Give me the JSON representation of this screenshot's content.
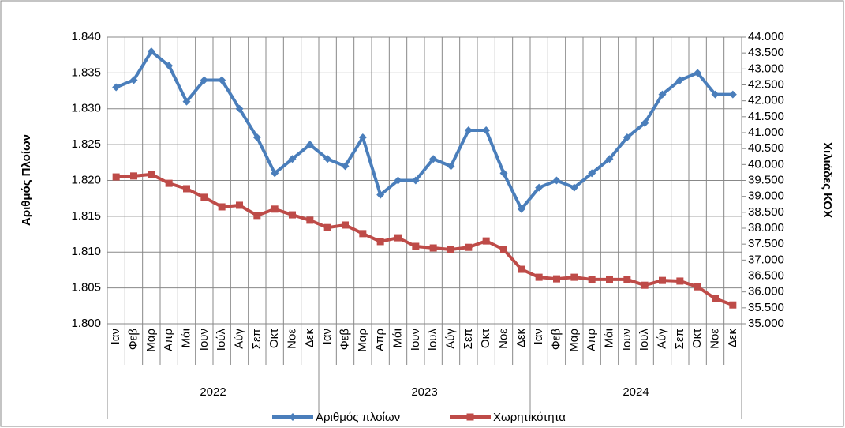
{
  "chart_data": {
    "type": "line",
    "categories": [
      "Ιαν",
      "Φεβ",
      "Μαρ",
      "Απρ",
      "Μάι",
      "Ιουν",
      "Ιούλ",
      "Αύγ",
      "Σεπ",
      "Οκτ",
      "Νοε",
      "Δεκ",
      "Ιαν",
      "Φεβ",
      "Μαρ",
      "Απρ",
      "Μάι",
      "Ιουν",
      "Ιουλ",
      "Αύγ",
      "Σεπ",
      "Οκτ",
      "Νοε",
      "Δεκ",
      "Ιαν",
      "Φεβ",
      "Μαρ",
      "Απρ",
      "Μάι",
      "Ιουν",
      "Ιουλ",
      "Αύγ",
      "Σεπ",
      "Οκτ",
      "Νοε",
      "Δεκ"
    ],
    "years": [
      "2022",
      "2023",
      "2024"
    ],
    "y_label": "Αριθμός Πλοίων",
    "y2_label": "Χιλιάδες ΚΟΧ",
    "ylim": [
      1800,
      1840
    ],
    "yticks": [
      {
        "value": 1800,
        "label": "1.800"
      },
      {
        "value": 1805,
        "label": "1.805"
      },
      {
        "value": 1810,
        "label": "1.810"
      },
      {
        "value": 1815,
        "label": "1.815"
      },
      {
        "value": 1820,
        "label": "1.820"
      },
      {
        "value": 1825,
        "label": "1.825"
      },
      {
        "value": 1830,
        "label": "1.830"
      },
      {
        "value": 1835,
        "label": "1.835"
      },
      {
        "value": 1840,
        "label": "1.840"
      }
    ],
    "y2lim": [
      35000,
      44000
    ],
    "y2ticks": [
      {
        "value": 35000,
        "label": "35.000"
      },
      {
        "value": 35500,
        "label": "35.500"
      },
      {
        "value": 36000,
        "label": "36.000"
      },
      {
        "value": 36500,
        "label": "36.500"
      },
      {
        "value": 37000,
        "label": "37.000"
      },
      {
        "value": 37500,
        "label": "37.500"
      },
      {
        "value": 38000,
        "label": "38.000"
      },
      {
        "value": 38500,
        "label": "38.500"
      },
      {
        "value": 39000,
        "label": "39.000"
      },
      {
        "value": 39500,
        "label": "39.500"
      },
      {
        "value": 40000,
        "label": "40.000"
      },
      {
        "value": 40500,
        "label": "40.500"
      },
      {
        "value": 41000,
        "label": "41.000"
      },
      {
        "value": 41500,
        "label": "41.500"
      },
      {
        "value": 42000,
        "label": "42.000"
      },
      {
        "value": 42500,
        "label": "42.500"
      },
      {
        "value": 43000,
        "label": "43.000"
      },
      {
        "value": 43500,
        "label": "43.500"
      },
      {
        "value": 44000,
        "label": "44.000"
      }
    ],
    "grid": true,
    "legend": "bottom",
    "series": [
      {
        "name": "Αριθμός πλοίων",
        "color": "#4a7ebb",
        "marker": "diamond",
        "values": [
          1833,
          1834,
          1838,
          1836,
          1831,
          1834,
          1834,
          1830,
          1826,
          1821,
          1823,
          1825,
          1823,
          1822,
          1826,
          1818,
          1820,
          1820,
          1823,
          1822,
          1827,
          1827,
          1821,
          1816,
          1819,
          1820,
          1819,
          1821,
          1823,
          1826,
          1828,
          1832,
          1834,
          1835,
          1832,
          1832
        ]
      },
      {
        "name": "Χωρητικότητα",
        "color": "#be4b48",
        "marker": "square",
        "axis": "y2",
        "values": [
          39610,
          39640,
          39690,
          39410,
          39240,
          38970,
          38670,
          38720,
          38400,
          38600,
          38420,
          38250,
          38020,
          38100,
          37830,
          37580,
          37700,
          37430,
          37380,
          37330,
          37400,
          37600,
          37330,
          36710,
          36460,
          36410,
          36460,
          36390,
          36390,
          36390,
          36210,
          36360,
          36340,
          36160,
          35790,
          35590
        ]
      }
    ]
  }
}
